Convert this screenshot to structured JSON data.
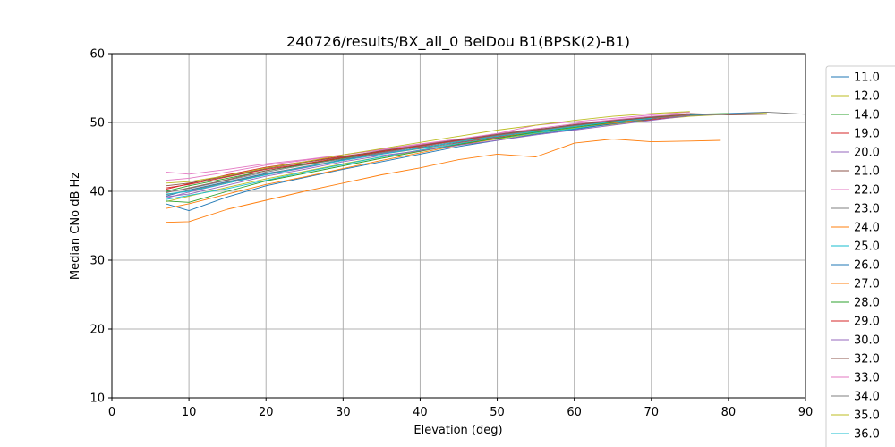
{
  "chart_data": {
    "type": "line",
    "title": "240726/results/BX_all_0 BeiDou B1(BPSK(2)-B1)",
    "xlabel": "Elevation (deg)",
    "ylabel": "Median CNo dB Hz",
    "xlim": [
      0,
      90
    ],
    "ylim": [
      10,
      60
    ],
    "xticks": [
      "0",
      "10",
      "20",
      "30",
      "40",
      "50",
      "60",
      "70",
      "80",
      "90"
    ],
    "yticks": [
      "10",
      "20",
      "30",
      "40",
      "50",
      "60"
    ],
    "grid": true,
    "legend_placement": "right, outside plot (clipped)",
    "series": [
      {
        "name": "11.0",
        "color": "#1f77b4",
        "x": [
          7,
          10,
          15,
          20,
          25,
          30,
          35,
          40,
          45,
          50,
          55,
          60,
          65,
          70,
          75,
          80,
          85
        ],
        "values": [
          39.3,
          40.2,
          41.4,
          42.6,
          43.5,
          44.6,
          45.5,
          46.3,
          47.2,
          48.1,
          48.7,
          49.6,
          50.1,
          50.5,
          51.1,
          51.3,
          51.5
        ]
      },
      {
        "name": "12.0",
        "color": "#bcbd22",
        "x": [
          7,
          10,
          15,
          20,
          25,
          30,
          35,
          40,
          45,
          50,
          55,
          60,
          65,
          70,
          75,
          80,
          85
        ],
        "values": [
          38.5,
          39.3,
          40.6,
          41.8,
          42.9,
          44.0,
          45.0,
          45.9,
          46.8,
          47.6,
          48.4,
          49.2,
          49.7,
          50.4,
          50.9,
          51.2,
          51.4
        ]
      },
      {
        "name": "14.0",
        "color": "#2ca02c",
        "x": [
          7,
          10,
          15,
          20,
          25,
          30,
          35,
          40,
          45,
          50,
          55,
          60,
          65,
          70,
          75,
          80
        ],
        "values": [
          40.0,
          40.8,
          41.9,
          43.0,
          43.9,
          44.8,
          45.6,
          46.5,
          47.4,
          48.2,
          48.9,
          49.6,
          50.2,
          50.8,
          51.2,
          51.3
        ]
      },
      {
        "name": "19.0",
        "color": "#d62728",
        "x": [
          7,
          10,
          15,
          20,
          25,
          30,
          35,
          40,
          45,
          50,
          55,
          60,
          65,
          70,
          75
        ],
        "values": [
          40.3,
          41.1,
          42.4,
          43.5,
          44.3,
          45.1,
          45.8,
          46.4,
          47.1,
          47.9,
          48.7,
          49.5,
          50.0,
          50.4,
          51.0
        ]
      },
      {
        "name": "20.0",
        "color": "#9467bd",
        "x": [
          7,
          10,
          15,
          20,
          25,
          30,
          35,
          40,
          45,
          50,
          55,
          60,
          65,
          70,
          75
        ],
        "values": [
          39.0,
          39.9,
          41.2,
          42.4,
          43.4,
          44.5,
          45.5,
          46.3,
          47.2,
          48.0,
          48.8,
          49.5,
          50.3,
          50.8,
          51.1
        ]
      },
      {
        "name": "21.0",
        "color": "#8c564b",
        "x": [
          7,
          10,
          15,
          20,
          25,
          30,
          35,
          40,
          45,
          50,
          55,
          60,
          65,
          70,
          75,
          80,
          85
        ],
        "values": [
          39.8,
          40.5,
          41.7,
          43.0,
          44.0,
          44.9,
          45.7,
          46.6,
          47.4,
          48.2,
          48.9,
          49.7,
          50.3,
          50.8,
          51.3,
          51.1,
          51.2
        ]
      },
      {
        "name": "22.0",
        "color": "#e377c2",
        "x": [
          7,
          10,
          15,
          20,
          25,
          30,
          35,
          40,
          45,
          50,
          55,
          60,
          65,
          70,
          75
        ],
        "values": [
          42.8,
          42.5,
          43.2,
          44.0,
          44.6,
          45.3,
          46.0,
          46.8,
          47.5,
          48.4,
          49.6,
          50.1,
          50.6,
          51.1,
          51.5
        ]
      },
      {
        "name": "23.0",
        "color": "#7f7f7f",
        "x": [
          7,
          10,
          15,
          20,
          25,
          30,
          35,
          40,
          45,
          50,
          55,
          60,
          65,
          70,
          75,
          80,
          85,
          90
        ],
        "values": [
          39.5,
          40.1,
          41.3,
          42.5,
          43.6,
          44.5,
          45.4,
          46.2,
          47.0,
          47.8,
          48.6,
          49.4,
          50.1,
          50.6,
          51.0,
          51.2,
          51.5,
          51.2
        ]
      },
      {
        "name": "24.0",
        "color": "#ff7f0e",
        "x": [
          7,
          10,
          15,
          20,
          25,
          30,
          35,
          40,
          45,
          50,
          55,
          60,
          65,
          70,
          75,
          79
        ],
        "values": [
          35.5,
          35.6,
          37.4,
          38.7,
          40.0,
          41.2,
          42.4,
          43.4,
          44.6,
          45.4,
          45.0,
          47.0,
          47.6,
          47.2,
          47.3,
          47.4
        ]
      },
      {
        "name": "25.0",
        "color": "#17becf",
        "x": [
          7,
          10,
          15,
          20,
          25,
          30,
          35,
          40,
          45,
          50,
          55,
          60,
          65,
          70
        ],
        "values": [
          38.8,
          39.4,
          40.4,
          41.6,
          42.8,
          43.9,
          45.0,
          46.0,
          46.9,
          47.7,
          48.5,
          49.1,
          49.9,
          50.6
        ]
      },
      {
        "name": "26.0",
        "color": "#1f77b4",
        "x": [
          7,
          10,
          15,
          20,
          25,
          30,
          35,
          40,
          45,
          50,
          55,
          60,
          65,
          70
        ],
        "values": [
          38.2,
          37.2,
          39.2,
          40.8,
          42.0,
          43.2,
          44.3,
          45.4,
          46.5,
          47.4,
          48.3,
          49.0,
          49.8,
          50.5
        ]
      },
      {
        "name": "27.0",
        "color": "#ff7f0e",
        "x": [
          7,
          10,
          15,
          20,
          25,
          30,
          35,
          40,
          45,
          50,
          55,
          60,
          65,
          70,
          75
        ],
        "values": [
          37.5,
          38.2,
          39.6,
          41.0,
          42.1,
          43.3,
          44.5,
          45.6,
          46.7,
          47.7,
          48.7,
          49.3,
          49.9,
          50.6,
          51.2
        ]
      },
      {
        "name": "28.0",
        "color": "#2ca02c",
        "x": [
          7,
          10,
          15,
          20,
          25,
          30,
          35,
          40,
          45,
          50,
          55,
          60,
          65,
          70,
          75
        ],
        "values": [
          38.6,
          38.4,
          40.0,
          41.5,
          42.6,
          43.7,
          44.8,
          45.8,
          46.8,
          47.7,
          48.6,
          49.3,
          50.0,
          50.7,
          51.3
        ]
      },
      {
        "name": "29.0",
        "color": "#d62728",
        "x": [
          7,
          10,
          15,
          20,
          25,
          30,
          35,
          40,
          45,
          50,
          55,
          60,
          65,
          70,
          75
        ],
        "values": [
          40.5,
          41.0,
          42.1,
          43.2,
          44.0,
          44.9,
          45.8,
          46.6,
          47.4,
          48.1,
          48.8,
          49.5,
          50.1,
          50.6,
          51.0
        ]
      },
      {
        "name": "30.0",
        "color": "#9467bd",
        "x": [
          7,
          10,
          15,
          20,
          25,
          30,
          35,
          40,
          45,
          50,
          55,
          60,
          65,
          70,
          75
        ],
        "values": [
          39.2,
          39.6,
          40.9,
          42.2,
          43.2,
          44.3,
          45.2,
          45.9,
          46.7,
          47.4,
          48.2,
          48.9,
          49.6,
          50.3,
          51.0
        ]
      },
      {
        "name": "32.0",
        "color": "#8c564b",
        "x": [
          7,
          10,
          15,
          20,
          25,
          30,
          35,
          40,
          45,
          50,
          55,
          60,
          65,
          70,
          75
        ],
        "values": [
          40.8,
          41.2,
          42.2,
          43.3,
          44.2,
          45.0,
          45.9,
          46.7,
          47.5,
          48.3,
          49.0,
          49.6,
          50.2,
          50.7,
          51.2
        ]
      },
      {
        "name": "33.0",
        "color": "#e377c2",
        "x": [
          7,
          10,
          15,
          20,
          25,
          30,
          35,
          40,
          45,
          50,
          55,
          60,
          65,
          70,
          75
        ],
        "values": [
          41.6,
          41.9,
          42.8,
          43.8,
          44.5,
          45.3,
          46.1,
          46.9,
          47.6,
          48.4,
          49.1,
          49.8,
          50.4,
          50.9,
          51.3
        ]
      },
      {
        "name": "34.0",
        "color": "#7f7f7f",
        "x": [
          7,
          10,
          15,
          20,
          25,
          30,
          35,
          40,
          45,
          50,
          55,
          60,
          65,
          70,
          75
        ],
        "values": [
          39.9,
          40.4,
          41.6,
          42.8,
          43.8,
          44.7,
          45.6,
          46.5,
          47.3,
          48.1,
          48.8,
          49.5,
          50.1,
          50.6,
          51.0
        ]
      },
      {
        "name": "35.0",
        "color": "#bcbd22",
        "x": [
          7,
          10,
          15,
          20,
          25,
          30,
          35,
          40,
          45,
          50,
          55,
          60,
          65,
          70,
          75
        ],
        "values": [
          41.2,
          41.4,
          42.3,
          43.4,
          44.3,
          45.3,
          46.2,
          47.1,
          48.0,
          48.9,
          49.6,
          50.3,
          50.9,
          51.3,
          51.6
        ]
      },
      {
        "name": "36.0",
        "color": "#17becf",
        "x": [
          7,
          10,
          15,
          20,
          25,
          30,
          35,
          40,
          45,
          50,
          55,
          60,
          65,
          70
        ],
        "values": [
          39.6,
          40.0,
          41.2,
          42.4,
          43.5,
          44.5,
          45.4,
          46.3,
          47.2,
          48.0,
          48.7,
          49.4,
          50.1,
          50.6
        ]
      }
    ]
  }
}
